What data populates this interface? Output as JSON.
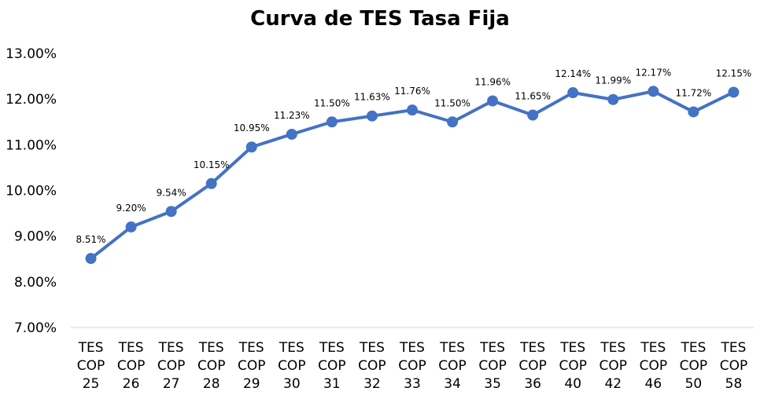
{
  "chart_data": {
    "type": "line",
    "title": "Curva de TES Tasa Fija",
    "xlabel": "",
    "ylabel": "",
    "categories": [
      [
        "TES",
        "COP",
        "25"
      ],
      [
        "TES",
        "COP",
        "26"
      ],
      [
        "TES",
        "COP",
        "27"
      ],
      [
        "TES",
        "COP",
        "28"
      ],
      [
        "TES",
        "COP",
        "29"
      ],
      [
        "TES",
        "COP",
        "30"
      ],
      [
        "TES",
        "COP",
        "31"
      ],
      [
        "TES",
        "COP",
        "32"
      ],
      [
        "TES",
        "COP",
        "33"
      ],
      [
        "TES",
        "COP",
        "34"
      ],
      [
        "TES",
        "COP",
        "35"
      ],
      [
        "TES",
        "COP",
        "36"
      ],
      [
        "TES",
        "COP",
        "40"
      ],
      [
        "TES",
        "COP",
        "42"
      ],
      [
        "TES",
        "COP",
        "46"
      ],
      [
        "TES",
        "COP",
        "50"
      ],
      [
        "TES",
        "COP",
        "58"
      ]
    ],
    "series": [
      {
        "values": [
          8.51,
          9.2,
          9.54,
          10.15,
          10.95,
          11.23,
          11.5,
          11.63,
          11.76,
          11.5,
          11.96,
          11.65,
          12.14,
          11.99,
          12.17,
          11.72,
          12.15
        ],
        "labels": [
          "8.51%",
          "9.20%",
          "9.54%",
          "10.15%",
          "10.95%",
          "11.23%",
          "11.50%",
          "11.63%",
          "11.76%",
          "11.50%",
          "11.96%",
          "11.65%",
          "12.14%",
          "11.99%",
          "12.17%",
          "11.72%",
          "12.15%"
        ],
        "color": "#4472C4"
      }
    ],
    "ylim": [
      7,
      13
    ],
    "yticks": [
      "7.00%",
      "8.00%",
      "9.00%",
      "10.00%",
      "11.00%",
      "12.00%",
      "13.00%"
    ],
    "grid": false,
    "legend": "none"
  }
}
